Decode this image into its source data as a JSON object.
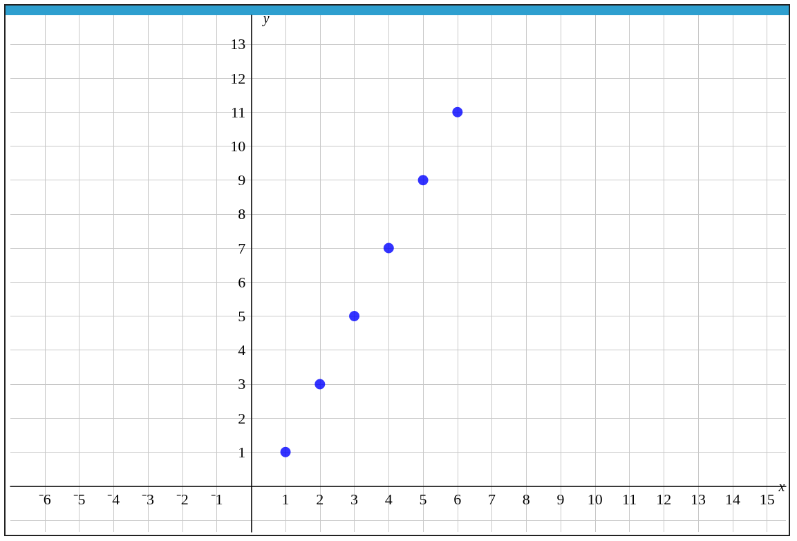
{
  "chart_data": {
    "type": "scatter",
    "xlabel": "x",
    "ylabel": "y",
    "x": [
      1,
      2,
      3,
      4,
      5,
      6
    ],
    "series": [
      {
        "color": "#0000ff",
        "values": [
          1,
          3,
          5,
          7,
          9,
          11
        ]
      }
    ],
    "xlim": [
      -7,
      15.55
    ],
    "ylim": [
      -1.35,
      13.85
    ],
    "xticks": [
      {
        "value": -6,
        "label": "⁻6"
      },
      {
        "value": -5,
        "label": "⁻5"
      },
      {
        "value": -4,
        "label": "⁻4"
      },
      {
        "value": -3,
        "label": "⁻3"
      },
      {
        "value": -2,
        "label": "⁻2"
      },
      {
        "value": -1,
        "label": "⁻1"
      },
      {
        "value": 0,
        "label": null
      },
      1,
      2,
      3,
      4,
      5,
      6,
      7,
      8,
      9,
      10,
      11,
      12,
      13,
      14,
      15
    ],
    "yticks": [
      {
        "value": -1,
        "label": null
      },
      {
        "value": 0,
        "label": null
      },
      1,
      2,
      3,
      4,
      5,
      6,
      7,
      8,
      9,
      10,
      11,
      12,
      13
    ],
    "grid": true,
    "marker": "circle"
  }
}
